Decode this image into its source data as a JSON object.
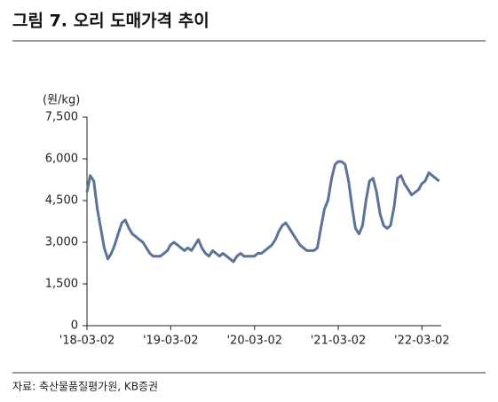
{
  "chart_data": {
    "type": "line",
    "title": "그림 7. 오리 도매가격 추이",
    "y_label": "(원/kg)",
    "source": "자료: 축산물품질평가원, KB증권",
    "color": "#5b7396",
    "x": [
      "2018-03-02",
      "2018-03-16",
      "2018-04-01",
      "2018-04-16",
      "2018-05-01",
      "2018-05-16",
      "2018-06-01",
      "2018-06-16",
      "2018-07-01",
      "2018-07-16",
      "2018-08-01",
      "2018-08-16",
      "2018-09-01",
      "2018-09-16",
      "2018-10-01",
      "2018-10-16",
      "2018-11-01",
      "2018-11-16",
      "2018-12-01",
      "2018-12-16",
      "2019-01-01",
      "2019-01-16",
      "2019-02-01",
      "2019-02-16",
      "2019-03-01",
      "2019-03-16",
      "2019-04-01",
      "2019-04-16",
      "2019-05-01",
      "2019-05-16",
      "2019-06-01",
      "2019-06-16",
      "2019-07-01",
      "2019-07-16",
      "2019-08-01",
      "2019-08-16",
      "2019-09-01",
      "2019-09-16",
      "2019-10-01",
      "2019-10-16",
      "2019-11-01",
      "2019-11-16",
      "2019-12-01",
      "2019-12-16",
      "2020-01-01",
      "2020-01-16",
      "2020-02-01",
      "2020-02-16",
      "2020-03-01",
      "2020-03-16",
      "2020-04-01",
      "2020-04-16",
      "2020-05-01",
      "2020-05-16",
      "2020-06-01",
      "2020-06-16",
      "2020-07-01",
      "2020-07-16",
      "2020-08-01",
      "2020-08-16",
      "2020-09-01",
      "2020-09-16",
      "2020-10-01",
      "2020-10-16",
      "2020-11-01",
      "2020-11-16",
      "2020-12-01",
      "2020-12-16",
      "2021-01-01",
      "2021-01-16",
      "2021-02-01",
      "2021-02-16",
      "2021-03-01",
      "2021-03-16",
      "2021-04-01",
      "2021-04-16",
      "2021-05-01",
      "2021-05-16",
      "2021-06-01",
      "2021-06-16",
      "2021-07-01",
      "2021-07-16",
      "2021-08-01",
      "2021-08-16",
      "2021-09-01",
      "2021-09-16",
      "2021-10-01",
      "2021-10-16",
      "2021-11-01",
      "2021-11-16",
      "2021-12-01",
      "2021-12-16",
      "2022-01-01",
      "2022-01-16",
      "2022-02-01",
      "2022-02-16",
      "2022-03-01",
      "2022-03-16",
      "2022-04-01",
      "2022-04-16",
      "2022-05-01",
      "2022-05-16"
    ],
    "values": [
      4800,
      5400,
      5200,
      4200,
      3500,
      2800,
      2400,
      2600,
      2900,
      3300,
      3700,
      3800,
      3500,
      3300,
      3200,
      3100,
      3000,
      2800,
      2600,
      2500,
      2500,
      2500,
      2600,
      2700,
      2900,
      3000,
      2900,
      2800,
      2700,
      2800,
      2700,
      2900,
      3100,
      2800,
      2600,
      2500,
      2700,
      2600,
      2500,
      2600,
      2500,
      2400,
      2300,
      2500,
      2600,
      2500,
      2500,
      2500,
      2500,
      2600,
      2600,
      2700,
      2800,
      2900,
      3100,
      3400,
      3600,
      3700,
      3500,
      3300,
      3100,
      2900,
      2800,
      2700,
      2700,
      2700,
      2800,
      3500,
      4200,
      4500,
      5300,
      5800,
      5900,
      5900,
      5800,
      5200,
      4300,
      3500,
      3300,
      3600,
      4500,
      5200,
      5300,
      4800,
      4000,
      3600,
      3500,
      3600,
      4300,
      5300,
      5400,
      5100,
      4900,
      4700,
      4800,
      4900,
      5100,
      5200,
      5500,
      5400,
      5300,
      5200
    ],
    "xlim": [
      "2018-03-02",
      "2022-05-25"
    ],
    "xticks": [
      {
        "value": "2018-03-02",
        "label": "'18-03-02"
      },
      {
        "value": "2019-03-02",
        "label": "'19-03-02"
      },
      {
        "value": "2020-03-02",
        "label": "'20-03-02"
      },
      {
        "value": "2021-03-02",
        "label": "'21-03-02"
      },
      {
        "value": "2022-03-02",
        "label": "'22-03-02"
      }
    ],
    "ylim": [
      0,
      7500
    ],
    "yticks": [
      0,
      {
        "value": 1500,
        "label": "1,500"
      },
      {
        "value": 3000,
        "label": "3,000"
      },
      {
        "value": 4500,
        "label": "4,500"
      },
      {
        "value": 6000,
        "label": "6,000"
      },
      {
        "value": 7500,
        "label": "7,500"
      }
    ]
  }
}
